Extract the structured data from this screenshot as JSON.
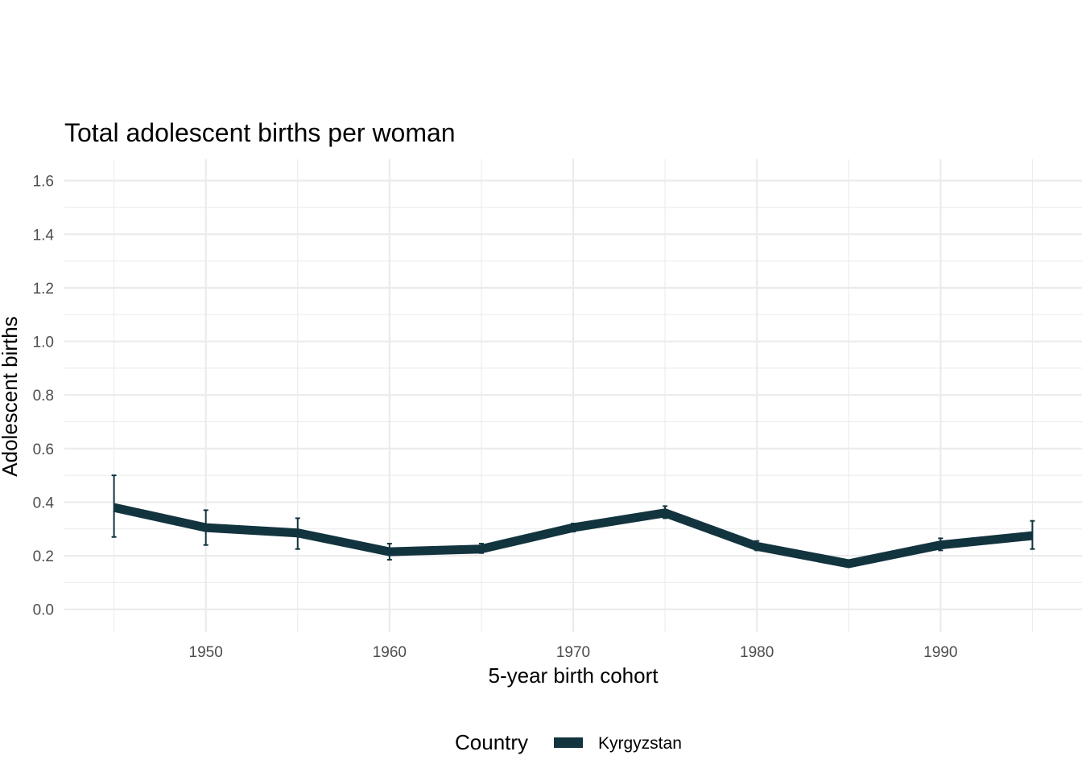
{
  "chart_data": {
    "type": "line",
    "title": "Total adolescent births per woman",
    "xlabel": "5-year birth cohort",
    "ylabel": "Adolescent births",
    "xlim": [
      1942.3,
      1997.7
    ],
    "ylim": [
      -0.085,
      1.68
    ],
    "x_ticks": [
      1950,
      1960,
      1970,
      1980,
      1990
    ],
    "x_tick_labels": [
      "1950",
      "1960",
      "1970",
      "1980",
      "1990"
    ],
    "y_ticks": [
      0.0,
      0.2,
      0.4,
      0.6,
      0.8,
      1.0,
      1.2,
      1.4,
      1.6
    ],
    "y_tick_labels": [
      "0.0",
      "0.2",
      "0.4",
      "0.6",
      "0.8",
      "1.0",
      "1.2",
      "1.4",
      "1.6"
    ],
    "grid": true,
    "legend": {
      "title": "Country",
      "position": "bottom"
    },
    "series": [
      {
        "name": "Kyrgyzstan",
        "color": "#12343f",
        "x": [
          1945,
          1950,
          1955,
          1960,
          1965,
          1970,
          1975,
          1980,
          1985,
          1990,
          1995
        ],
        "values": [
          0.38,
          0.305,
          0.285,
          0.215,
          0.225,
          0.305,
          0.36,
          0.235,
          0.17,
          0.24,
          0.275
        ],
        "lower": [
          0.27,
          0.24,
          0.225,
          0.185,
          0.21,
          0.29,
          0.34,
          0.22,
          0.165,
          0.22,
          0.225
        ],
        "upper": [
          0.5,
          0.37,
          0.34,
          0.245,
          0.245,
          0.32,
          0.385,
          0.255,
          0.18,
          0.265,
          0.33
        ]
      }
    ]
  }
}
